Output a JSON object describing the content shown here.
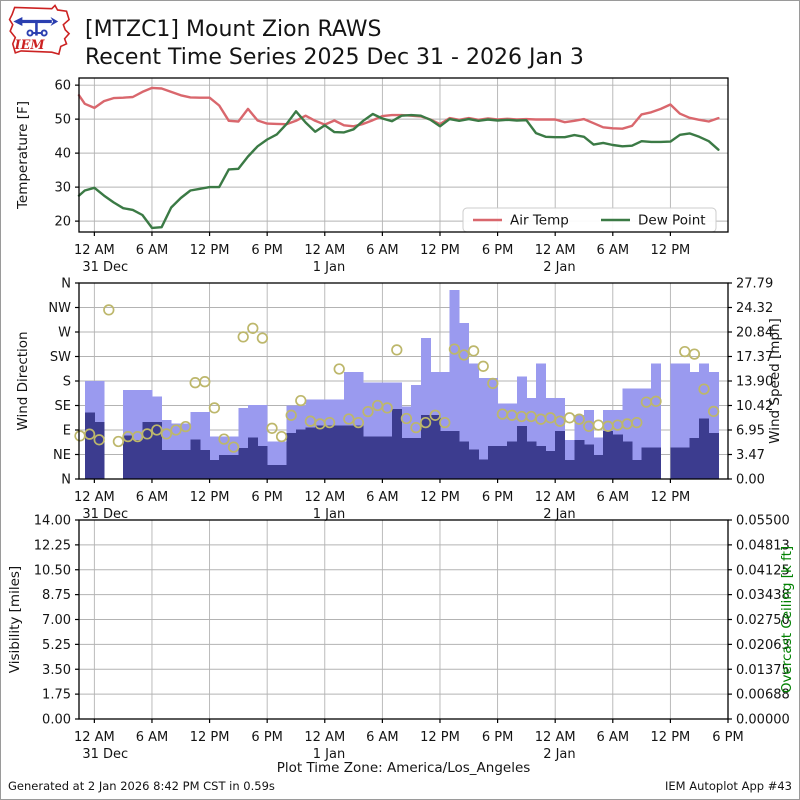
{
  "header": {
    "title_line1": "[MTZC1] Mount Zion RAWS",
    "title_line2": "Recent Time Series 2025 Dec 31 - 2026 Jan 3",
    "logo_text": "IEM"
  },
  "footer": {
    "generated": "Generated at 2 Jan 2026 8:42 PM CST in 0.59s",
    "app": "IEM Autoplot App #43"
  },
  "plot_time_zone_label": "Plot Time Zone: America/Los_Angeles",
  "colors": {
    "air_temp": "#d9676d",
    "dew_point": "#3b7a45",
    "wind_gust_bar": "#9a9aef",
    "wind_speed_bar": "#3c3c8f",
    "wind_dir_point": "#bdb76b",
    "grid": "#b3b3b3",
    "spine": "#000000",
    "overcast_label": "#008000",
    "text": "#141414"
  },
  "time_axis": {
    "start_date": "2025-12-31",
    "hours_domain": [
      -1.6,
      66.0
    ],
    "tick_hours": [
      0,
      6,
      12,
      18,
      24,
      30,
      36,
      42,
      48,
      54,
      60,
      66
    ],
    "tick_labels": [
      "12 AM",
      "6 AM",
      "12 PM",
      "6 PM",
      "12 AM",
      "6 AM",
      "12 PM",
      "6 PM",
      "12 AM",
      "6 AM",
      "12 PM",
      "6 PM"
    ],
    "date_labels": [
      {
        "hour": 0,
        "label": "31 Dec"
      },
      {
        "hour": 24,
        "label": "1 Jan"
      },
      {
        "hour": 48,
        "label": "2 Jan"
      }
    ]
  },
  "chart_data": [
    {
      "type": "line",
      "panel": "temperature",
      "ylabel": "Temperature [F]",
      "ylim": [
        16.8,
        62.1
      ],
      "yticks": [
        20,
        30,
        40,
        50,
        60
      ],
      "ytick_labels": [
        "20",
        "30",
        "40",
        "50",
        "60"
      ],
      "x_tick_count": 11,
      "grid": true,
      "legend_position": "lower right",
      "legend": [
        "Air Temp",
        "Dew Point"
      ],
      "series": [
        {
          "name": "Air Temp",
          "color_key": "air_temp",
          "start_hour": -2,
          "step_hours": 1,
          "values": [
            57.0,
            54.5,
            53.3,
            55.3,
            56.2,
            56.3,
            56.5,
            58.0,
            59.2,
            59.0,
            58.0,
            57.0,
            56.4,
            56.3,
            56.3,
            54.0,
            49.5,
            49.3,
            53.0,
            49.6,
            48.7,
            48.6,
            48.5,
            49.5,
            51.0,
            49.5,
            48.4,
            49.6,
            48.2,
            47.9,
            48.6,
            49.7,
            50.9,
            51.2,
            51.2,
            51.0,
            50.8,
            49.9,
            48.5,
            50.3,
            49.8,
            50.3,
            49.8,
            50.2,
            49.9,
            50.1,
            49.9,
            50.0,
            49.9,
            49.9,
            49.9,
            49.1,
            49.5,
            50.0,
            48.8,
            47.6,
            47.3,
            47.2,
            48.0,
            51.4,
            52.0,
            53.0,
            54.3,
            51.6,
            50.4,
            49.8,
            49.3,
            50.3
          ]
        },
        {
          "name": "Dew Point",
          "color_key": "dew_point",
          "start_hour": -2,
          "step_hours": 1,
          "values": [
            27.5,
            29.0,
            29.8,
            27.5,
            25.5,
            23.8,
            23.3,
            21.8,
            18.0,
            18.2,
            24.0,
            26.8,
            29.0,
            29.5,
            30.0,
            30.0,
            35.2,
            35.4,
            39.0,
            42.0,
            44.0,
            45.5,
            48.5,
            52.3,
            49.0,
            46.3,
            48.2,
            46.2,
            46.1,
            47.0,
            49.5,
            51.5,
            50.2,
            49.4,
            51.0,
            51.2,
            51.0,
            49.8,
            47.9,
            50.0,
            49.5,
            50.0,
            49.5,
            49.9,
            49.6,
            49.8,
            49.6,
            49.7,
            45.9,
            44.8,
            44.7,
            44.7,
            45.3,
            44.8,
            42.5,
            43.0,
            42.4,
            42.0,
            42.2,
            43.5,
            43.3,
            43.3,
            43.4,
            45.4,
            45.8,
            44.8,
            43.5,
            41.0
          ]
        }
      ]
    },
    {
      "type": "bar",
      "panel": "wind",
      "ylabel_left": "Wind Direction",
      "yticks_left": [
        "N",
        "NE",
        "E",
        "SE",
        "S",
        "SW",
        "W",
        "NW",
        "N"
      ],
      "ylabel_right": "Wind Speed [mph]",
      "ylim_right": [
        0,
        27.79
      ],
      "yticks_right": [
        0.0,
        3.47,
        6.95,
        10.42,
        13.9,
        17.37,
        20.84,
        24.32,
        27.79
      ],
      "ytick_labels_right": [
        "0.00",
        "3.47",
        "6.95",
        "10.42",
        "13.90",
        "17.37",
        "20.84",
        "24.32",
        "27.79"
      ],
      "x_tick_count": 11,
      "grid": true,
      "bar_width_hours": 1,
      "series": [
        {
          "name": "Wind Gust",
          "kind": "bar",
          "color_key": "wind_gust_bar",
          "start_hour": -2,
          "step_hours": 1,
          "values": [
            null,
            13.9,
            13.9,
            null,
            null,
            12.6,
            12.6,
            12.6,
            11.7,
            8.4,
            7.9,
            7.9,
            9.5,
            9.5,
            6.0,
            6.0,
            6.0,
            10.1,
            10.5,
            10.5,
            5.3,
            5.3,
            10.4,
            10.4,
            11.3,
            11.3,
            11.3,
            11.3,
            15.2,
            15.2,
            13.7,
            13.7,
            13.7,
            13.7,
            10.3,
            13.3,
            20.0,
            15.2,
            15.2,
            26.8,
            22.1,
            16.4,
            14.3,
            14.3,
            10.7,
            10.7,
            14.5,
            11.5,
            16.4,
            11.5,
            11.5,
            5.5,
            9.1,
            9.8,
            5.9,
            9.8,
            9.8,
            12.8,
            12.8,
            12.8,
            16.4,
            null,
            16.4,
            16.4,
            15.2,
            16.4,
            15.2
          ]
        },
        {
          "name": "Wind Speed",
          "kind": "bar",
          "color_key": "wind_speed_bar",
          "start_hour": -2,
          "step_hours": 1,
          "values": [
            null,
            9.4,
            8.1,
            null,
            null,
            6.2,
            5.5,
            8.1,
            8.1,
            4.1,
            4.1,
            4.1,
            5.6,
            4.1,
            2.7,
            3.4,
            3.4,
            4.4,
            5.9,
            4.7,
            2.0,
            2.0,
            6.5,
            7.0,
            7.3,
            7.6,
            7.6,
            7.6,
            7.6,
            7.6,
            6.0,
            6.0,
            6.0,
            9.9,
            5.8,
            5.8,
            9.1,
            9.1,
            6.8,
            6.8,
            5.3,
            4.2,
            2.8,
            4.7,
            4.7,
            5.3,
            7.5,
            5.3,
            4.7,
            4.0,
            6.8,
            2.7,
            5.5,
            4.9,
            3.4,
            6.8,
            6.3,
            5.3,
            2.7,
            4.5,
            4.5,
            null,
            4.5,
            4.5,
            5.8,
            8.6,
            6.5
          ]
        },
        {
          "name": "Wind Direction",
          "kind": "scatter",
          "color_key": "wind_dir_point",
          "start_hour": -2,
          "step_hours": 1,
          "axis": "left",
          "units_note": "0=N 1=NE 2=E 3=SE 4=S 5=SW 6=W 7=NW 8=N",
          "values": [
            1.76,
            1.83,
            1.6,
            6.9,
            1.53,
            1.73,
            1.73,
            1.84,
            2.0,
            1.84,
            2.0,
            2.14,
            3.93,
            3.97,
            2.9,
            1.63,
            1.3,
            5.8,
            6.15,
            5.75,
            2.07,
            1.73,
            2.6,
            3.2,
            2.36,
            2.25,
            2.3,
            4.49,
            2.45,
            2.3,
            2.75,
            3.0,
            2.9,
            5.27,
            2.47,
            2.1,
            2.3,
            2.6,
            2.3,
            5.3,
            5.06,
            5.23,
            4.6,
            3.9,
            2.65,
            2.6,
            2.55,
            2.55,
            2.44,
            2.5,
            2.36,
            2.5,
            2.44,
            2.15,
            2.2,
            2.15,
            2.2,
            2.25,
            2.3,
            3.14,
            3.17,
            null,
            null,
            5.2,
            5.1,
            3.67,
            2.76
          ]
        }
      ]
    },
    {
      "type": "line",
      "panel": "visibility",
      "ylabel_left": "Visibility [miles]",
      "ylim_left": [
        0,
        14.0
      ],
      "ytick_labels_left": [
        "0.00",
        "1.75",
        "3.50",
        "5.25",
        "7.00",
        "8.75",
        "10.50",
        "12.25",
        "14.00"
      ],
      "ylabel_right": "Overcast Ceiling [k ft]",
      "ylim_right": [
        0,
        0.055
      ],
      "ytick_labels_right": [
        "0.00000",
        "0.00688",
        "0.01375",
        "0.02063",
        "0.02750",
        "0.03438",
        "0.04125",
        "0.04813",
        "0.05500"
      ],
      "x_tick_count": 12,
      "grid": true,
      "series": []
    }
  ]
}
